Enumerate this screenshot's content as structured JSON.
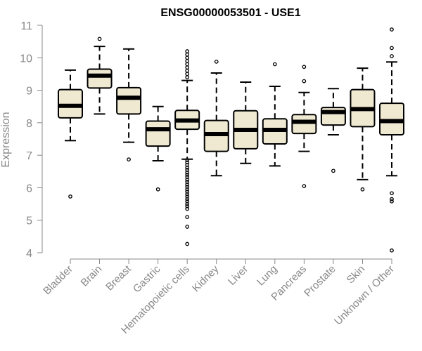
{
  "chart_data": {
    "type": "boxplot",
    "title": "ENSG00000053501 - USE1",
    "xlabel": "",
    "ylabel": "Expression",
    "ylim": [
      4,
      11
    ],
    "yticks": [
      4,
      5,
      6,
      7,
      8,
      9,
      10,
      11
    ],
    "categories": [
      "Bladder",
      "Brain",
      "Breast",
      "Gastric",
      "Hematopoietic cells",
      "Kidney",
      "Liver",
      "Lung",
      "Pancreas",
      "Prostate",
      "Skin",
      "Unknown / Other"
    ],
    "series": [
      {
        "name": "Bladder",
        "whisker_low": 7.45,
        "q1": 8.15,
        "median": 8.52,
        "q3": 9.02,
        "whisker_high": 9.62,
        "outliers": [
          5.73
        ]
      },
      {
        "name": "Brain",
        "whisker_low": 8.27,
        "q1": 9.07,
        "median": 9.45,
        "q3": 9.65,
        "whisker_high": 10.35,
        "outliers": [
          10.58
        ]
      },
      {
        "name": "Breast",
        "whisker_low": 7.4,
        "q1": 8.27,
        "median": 8.77,
        "q3": 9.08,
        "whisker_high": 10.27,
        "outliers": [
          6.87
        ]
      },
      {
        "name": "Gastric",
        "whisker_low": 6.83,
        "q1": 7.28,
        "median": 7.8,
        "q3": 8.05,
        "whisker_high": 8.5,
        "outliers": [
          5.95
        ]
      },
      {
        "name": "Hematopoietic cells",
        "whisker_low": 6.88,
        "q1": 7.8,
        "median": 8.07,
        "q3": 8.38,
        "whisker_high": 9.3,
        "outliers": [
          10.2,
          10.1,
          10.0,
          9.9,
          9.8,
          9.7,
          9.6,
          9.5,
          9.4,
          6.85,
          6.78,
          6.7,
          6.62,
          6.55,
          6.47,
          6.4,
          6.33,
          6.25,
          6.18,
          6.1,
          6.03,
          5.95,
          5.88,
          5.8,
          5.73,
          5.65,
          5.58,
          5.5,
          5.43,
          5.35,
          5.1,
          4.8,
          4.27
        ]
      },
      {
        "name": "Kidney",
        "whisker_low": 6.37,
        "q1": 7.12,
        "median": 7.65,
        "q3": 8.07,
        "whisker_high": 9.53,
        "outliers": [
          9.88
        ]
      },
      {
        "name": "Liver",
        "whisker_low": 6.75,
        "q1": 7.2,
        "median": 7.78,
        "q3": 8.37,
        "whisker_high": 9.25,
        "outliers": []
      },
      {
        "name": "Lung",
        "whisker_low": 6.67,
        "q1": 7.35,
        "median": 7.78,
        "q3": 8.12,
        "whisker_high": 9.12,
        "outliers": [
          9.8
        ]
      },
      {
        "name": "Pancreas",
        "whisker_low": 7.12,
        "q1": 7.67,
        "median": 8.03,
        "q3": 8.25,
        "whisker_high": 8.93,
        "outliers": [
          9.72,
          9.28,
          6.05
        ]
      },
      {
        "name": "Prostate",
        "whisker_low": 7.63,
        "q1": 7.93,
        "median": 8.33,
        "q3": 8.47,
        "whisker_high": 9.05,
        "outliers": [
          6.52
        ]
      },
      {
        "name": "Skin",
        "whisker_low": 6.25,
        "q1": 7.88,
        "median": 8.42,
        "q3": 9.02,
        "whisker_high": 9.68,
        "outliers": [
          5.95
        ]
      },
      {
        "name": "Unknown / Other",
        "whisker_low": 6.37,
        "q1": 7.63,
        "median": 8.05,
        "q3": 8.6,
        "whisker_high": 9.87,
        "outliers": [
          10.87,
          10.3,
          10.05,
          5.83,
          5.65,
          5.58,
          4.07
        ]
      }
    ],
    "colors": {
      "box_fill": "#efe9d2",
      "box_stroke": "#000000",
      "median": "#000000",
      "axis": "#888888",
      "tick_text": "#888888",
      "title": "#000000"
    },
    "grid": false,
    "legend": "none"
  }
}
